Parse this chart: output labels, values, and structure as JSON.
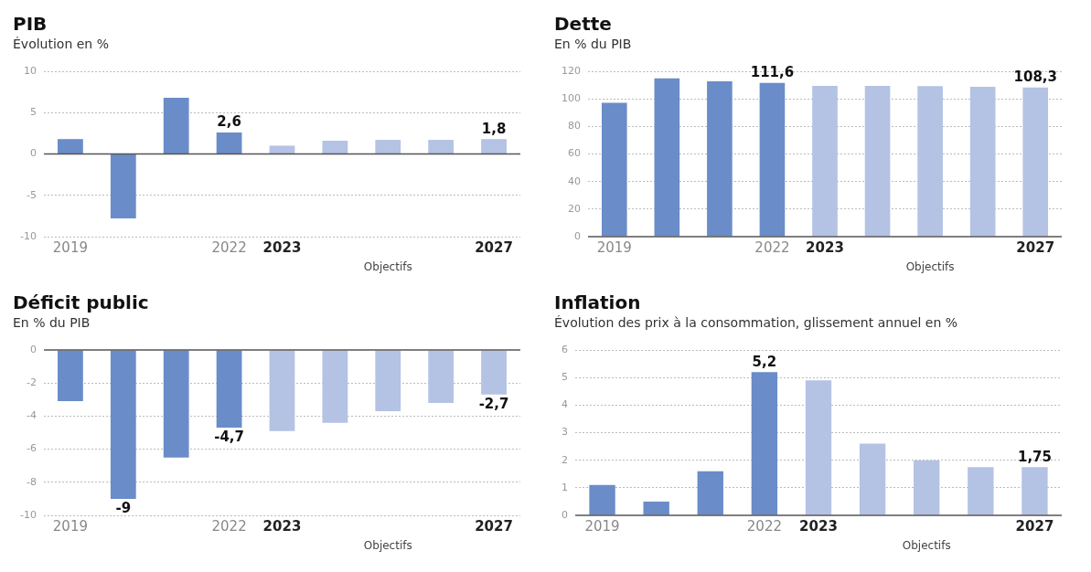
{
  "chart_data": [
    {
      "type": "bar",
      "title": "PIB",
      "subtitle": "Évolution en %",
      "categories": [
        "2019",
        null,
        null,
        "2022",
        "2023",
        null,
        null,
        null,
        "2027"
      ],
      "values": [
        1.8,
        -7.8,
        6.8,
        2.6,
        1.0,
        1.6,
        1.7,
        1.7,
        1.8
      ],
      "colors": [
        "#6a8cc8",
        "#6a8cc8",
        "#6a8cc8",
        "#6a8cc8",
        "#b4c2e4",
        "#b4c2e4",
        "#b4c2e4",
        "#b4c2e4",
        "#b4c2e4"
      ],
      "value_labels": [
        null,
        null,
        null,
        "2,6",
        null,
        null,
        null,
        null,
        "1,8"
      ],
      "ylim": [
        -10,
        10
      ],
      "yticks": [
        -10,
        -5,
        0,
        5,
        10
      ],
      "grid": "y",
      "annotations": [
        "Objectifs"
      ]
    },
    {
      "type": "bar",
      "title": "Dette",
      "subtitle": "En % du PIB",
      "categories": [
        "2019",
        null,
        null,
        "2022",
        "2023",
        null,
        null,
        null,
        "2027"
      ],
      "values": [
        97.2,
        114.8,
        112.7,
        111.6,
        109.4,
        109.4,
        109.2,
        108.7,
        108.3
      ],
      "colors": [
        "#6a8cc8",
        "#6a8cc8",
        "#6a8cc8",
        "#6a8cc8",
        "#b4c2e4",
        "#b4c2e4",
        "#b4c2e4",
        "#b4c2e4",
        "#b4c2e4"
      ],
      "value_labels": [
        null,
        null,
        null,
        "111,6",
        null,
        null,
        null,
        null,
        "108,3"
      ],
      "ylim": [
        0,
        120
      ],
      "yticks": [
        0,
        20,
        40,
        60,
        80,
        100,
        120
      ],
      "grid": "y",
      "annotations": [
        "Objectifs"
      ]
    },
    {
      "type": "bar",
      "title": "Déficit public",
      "subtitle": "En % du PIB",
      "categories": [
        "2019",
        null,
        null,
        "2022",
        "2023",
        null,
        null,
        null,
        "2027"
      ],
      "values": [
        -3.1,
        -9,
        -6.5,
        -4.7,
        -4.9,
        -4.4,
        -3.7,
        -3.2,
        -2.7
      ],
      "colors": [
        "#6a8cc8",
        "#6a8cc8",
        "#6a8cc8",
        "#6a8cc8",
        "#b4c2e4",
        "#b4c2e4",
        "#b4c2e4",
        "#b4c2e4",
        "#b4c2e4"
      ],
      "value_labels": [
        null,
        "-9",
        null,
        "-4,7",
        null,
        null,
        null,
        null,
        "-2,7"
      ],
      "ylim": [
        -10,
        0
      ],
      "yticks": [
        -10,
        -8,
        -6,
        -4,
        -2,
        0
      ],
      "grid": "y",
      "annotations": [
        "Objectifs"
      ]
    },
    {
      "type": "bar",
      "title": "Inflation",
      "subtitle": "Évolution des prix à la consommation, glissement annuel en %",
      "categories": [
        "2019",
        null,
        null,
        "2022",
        "2023",
        null,
        null,
        null,
        "2027"
      ],
      "values": [
        1.1,
        0.5,
        1.6,
        5.2,
        4.9,
        2.6,
        2.0,
        1.75,
        1.75
      ],
      "colors": [
        "#6a8cc8",
        "#6a8cc8",
        "#6a8cc8",
        "#6a8cc8",
        "#b4c2e4",
        "#b4c2e4",
        "#b4c2e4",
        "#b4c2e4",
        "#b4c2e4"
      ],
      "value_labels": [
        null,
        null,
        null,
        "5,2",
        null,
        null,
        null,
        null,
        "1,75"
      ],
      "ylim": [
        0,
        6
      ],
      "yticks": [
        0,
        1,
        2,
        3,
        4,
        5,
        6
      ],
      "grid": "y",
      "annotations": [
        "Objectifs"
      ]
    }
  ]
}
